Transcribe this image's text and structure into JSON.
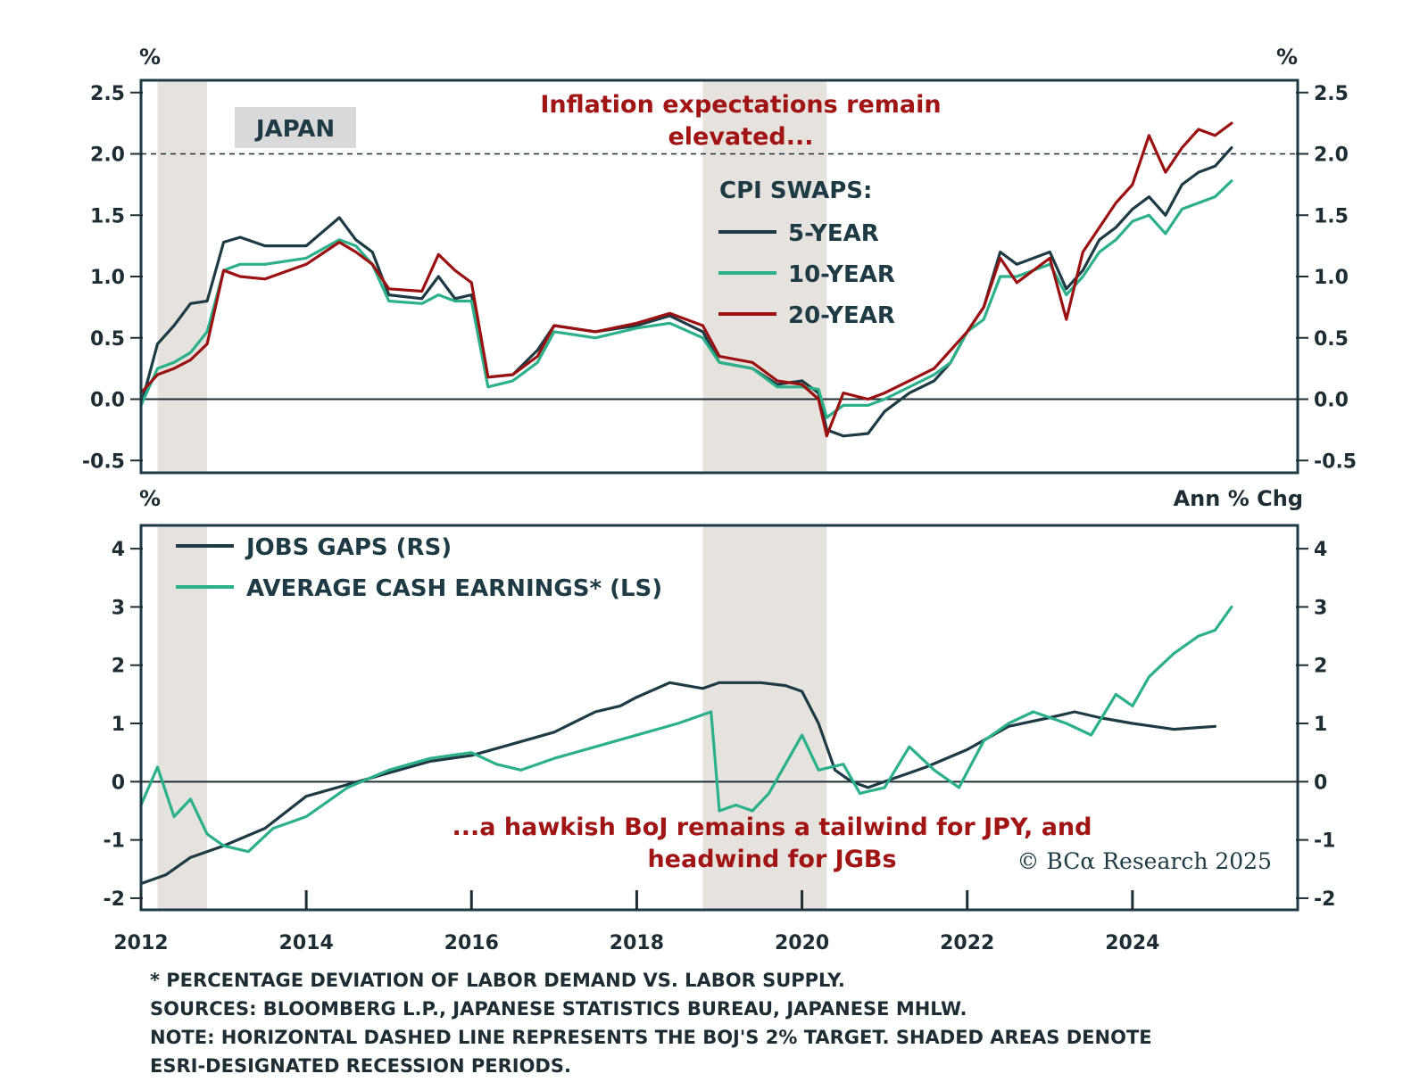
{
  "colors": {
    "five_year": "#1e3a44",
    "ten_year": "#2bb08a",
    "twenty_year": "#9b1111",
    "jobs_gap": "#1e3a44",
    "cash_earnings": "#2bb08a",
    "recession": "#e6e3df",
    "axis": "#1e2d33",
    "annotation": "#a11414"
  },
  "footnotes": [
    "* PERCENTAGE DEVIATION OF LABOR DEMAND VS. LABOR SUPPLY.",
    "SOURCES: BLOOMBERG L.P., JAPANESE STATISTICS BUREAU, JAPANESE MHLW.",
    "NOTE: HORIZONTAL DASHED LINE REPRESENTS THE BOJ'S 2% TARGET. SHADED AREAS DENOTE",
    "ESRI-DESIGNATED RECESSION PERIODS."
  ],
  "copyright": "© BCα Research 2025",
  "chart_data": [
    {
      "type": "line",
      "label_box": "JAPAN",
      "annotation": [
        "Inflation expectations remain",
        "elevated..."
      ],
      "legend_title": "CPI SWAPS:",
      "ylabel_left": "%",
      "ylabel_right": "%",
      "ylim": [
        -0.6,
        2.6
      ],
      "yticks": [
        "2.5",
        "2.0",
        "1.5",
        "1.0",
        "0.5",
        "0.0",
        "-0.5"
      ],
      "ytick_values": [
        2.5,
        2.0,
        1.5,
        1.0,
        0.5,
        0.0,
        -0.5
      ],
      "xlim": [
        2012,
        2026
      ],
      "reference_line": 2.0,
      "recessions": [
        [
          2012.2,
          2012.8
        ],
        [
          2018.8,
          2020.3
        ]
      ],
      "series": [
        {
          "name": "5-YEAR",
          "x": [
            2012.0,
            2012.2,
            2012.4,
            2012.6,
            2012.8,
            2013.0,
            2013.2,
            2013.5,
            2014.0,
            2014.4,
            2014.6,
            2014.8,
            2015.0,
            2015.4,
            2015.6,
            2015.8,
            2016.0,
            2016.2,
            2016.5,
            2016.8,
            2017.0,
            2017.5,
            2018.0,
            2018.4,
            2018.8,
            2019.0,
            2019.4,
            2019.7,
            2020.0,
            2020.2,
            2020.3,
            2020.5,
            2020.8,
            2021.0,
            2021.3,
            2021.6,
            2021.8,
            2022.0,
            2022.2,
            2022.4,
            2022.6,
            2022.8,
            2023.0,
            2023.2,
            2023.4,
            2023.6,
            2023.8,
            2024.0,
            2024.2,
            2024.4,
            2024.6,
            2024.8,
            2025.0,
            2025.2
          ],
          "y": [
            -0.05,
            0.45,
            0.6,
            0.78,
            0.8,
            1.28,
            1.32,
            1.25,
            1.25,
            1.48,
            1.3,
            1.2,
            0.85,
            0.82,
            1.0,
            0.82,
            0.85,
            0.18,
            0.2,
            0.4,
            0.6,
            0.55,
            0.6,
            0.68,
            0.55,
            0.3,
            0.25,
            0.12,
            0.15,
            0.05,
            -0.25,
            -0.3,
            -0.28,
            -0.1,
            0.05,
            0.15,
            0.3,
            0.55,
            0.75,
            1.2,
            1.1,
            1.15,
            1.2,
            0.9,
            1.05,
            1.3,
            1.4,
            1.55,
            1.65,
            1.5,
            1.75,
            1.85,
            1.9,
            2.05
          ]
        },
        {
          "name": "10-YEAR",
          "x": [
            2012.0,
            2012.2,
            2012.4,
            2012.6,
            2012.8,
            2013.0,
            2013.2,
            2013.5,
            2014.0,
            2014.4,
            2014.6,
            2014.8,
            2015.0,
            2015.4,
            2015.6,
            2015.8,
            2016.0,
            2016.2,
            2016.5,
            2016.8,
            2017.0,
            2017.5,
            2018.0,
            2018.4,
            2018.8,
            2019.0,
            2019.4,
            2019.7,
            2020.0,
            2020.2,
            2020.3,
            2020.5,
            2020.8,
            2021.0,
            2021.3,
            2021.6,
            2021.8,
            2022.0,
            2022.2,
            2022.4,
            2022.6,
            2022.8,
            2023.0,
            2023.2,
            2023.4,
            2023.6,
            2023.8,
            2024.0,
            2024.2,
            2024.4,
            2024.6,
            2024.8,
            2025.0,
            2025.2
          ],
          "y": [
            -0.05,
            0.25,
            0.3,
            0.38,
            0.55,
            1.05,
            1.1,
            1.1,
            1.15,
            1.3,
            1.25,
            1.1,
            0.8,
            0.78,
            0.85,
            0.8,
            0.8,
            0.1,
            0.15,
            0.3,
            0.55,
            0.5,
            0.58,
            0.62,
            0.5,
            0.3,
            0.25,
            0.1,
            0.1,
            0.08,
            -0.15,
            -0.05,
            -0.05,
            0.0,
            0.1,
            0.2,
            0.3,
            0.55,
            0.65,
            1.0,
            1.0,
            1.05,
            1.1,
            0.85,
            1.0,
            1.2,
            1.3,
            1.45,
            1.5,
            1.35,
            1.55,
            1.6,
            1.65,
            1.78
          ]
        },
        {
          "name": "20-YEAR",
          "x": [
            2012.0,
            2012.2,
            2012.4,
            2012.6,
            2012.8,
            2013.0,
            2013.2,
            2013.5,
            2014.0,
            2014.4,
            2014.6,
            2014.8,
            2015.0,
            2015.4,
            2015.6,
            2015.8,
            2016.0,
            2016.2,
            2016.5,
            2016.8,
            2017.0,
            2017.5,
            2018.0,
            2018.4,
            2018.8,
            2019.0,
            2019.4,
            2019.7,
            2020.0,
            2020.2,
            2020.3,
            2020.5,
            2020.8,
            2021.0,
            2021.3,
            2021.6,
            2021.8,
            2022.0,
            2022.2,
            2022.4,
            2022.6,
            2022.8,
            2023.0,
            2023.2,
            2023.4,
            2023.6,
            2023.8,
            2024.0,
            2024.2,
            2024.4,
            2024.6,
            2024.8,
            2025.0,
            2025.2
          ],
          "y": [
            0.05,
            0.2,
            0.25,
            0.32,
            0.45,
            1.05,
            1.0,
            0.98,
            1.1,
            1.28,
            1.2,
            1.1,
            0.9,
            0.88,
            1.18,
            1.05,
            0.95,
            0.18,
            0.2,
            0.35,
            0.6,
            0.55,
            0.62,
            0.7,
            0.6,
            0.35,
            0.3,
            0.15,
            0.12,
            0.0,
            -0.3,
            0.05,
            0.0,
            0.05,
            0.15,
            0.25,
            0.4,
            0.55,
            0.75,
            1.15,
            0.95,
            1.05,
            1.15,
            0.65,
            1.2,
            1.4,
            1.6,
            1.75,
            2.15,
            1.85,
            2.05,
            2.2,
            2.15,
            2.25
          ]
        }
      ]
    },
    {
      "type": "line",
      "ylabel_left": "%",
      "ylabel_right": "Ann % Chg",
      "ylim": [
        -2.2,
        4.4
      ],
      "yticks": [
        "4",
        "3",
        "2",
        "1",
        "0",
        "-1",
        "-2"
      ],
      "ytick_values": [
        4,
        3,
        2,
        1,
        0,
        -1,
        -2
      ],
      "xlim": [
        2012,
        2026
      ],
      "xticks": [
        "2012",
        "2014",
        "2016",
        "2018",
        "2020",
        "2022",
        "2024"
      ],
      "xtick_values": [
        2012,
        2014,
        2016,
        2018,
        2020,
        2022,
        2024
      ],
      "recessions": [
        [
          2012.2,
          2012.8
        ],
        [
          2018.8,
          2020.3
        ]
      ],
      "annotation": [
        "...a hawkish BoJ remains a tailwind for JPY, and",
        "headwind for JGBs"
      ],
      "series": [
        {
          "name": "JOBS GAPS (RS)",
          "x": [
            2012.0,
            2012.3,
            2012.6,
            2013.0,
            2013.5,
            2014.0,
            2014.5,
            2015.0,
            2015.5,
            2016.0,
            2016.5,
            2017.0,
            2017.5,
            2017.8,
            2018.0,
            2018.4,
            2018.8,
            2019.0,
            2019.5,
            2019.8,
            2020.0,
            2020.2,
            2020.4,
            2020.6,
            2020.8,
            2021.0,
            2021.5,
            2022.0,
            2022.5,
            2023.0,
            2023.3,
            2023.6,
            2024.0,
            2024.5,
            2025.0
          ],
          "y": [
            -1.75,
            -1.6,
            -1.3,
            -1.1,
            -0.8,
            -0.25,
            -0.05,
            0.15,
            0.35,
            0.45,
            0.65,
            0.85,
            1.2,
            1.3,
            1.45,
            1.7,
            1.6,
            1.7,
            1.7,
            1.65,
            1.55,
            1.0,
            0.2,
            0.0,
            -0.1,
            0.0,
            0.25,
            0.55,
            0.95,
            1.1,
            1.2,
            1.1,
            1.0,
            0.9,
            0.95
          ]
        },
        {
          "name": "AVERAGE CASH EARNINGS* (LS)",
          "x": [
            2012.0,
            2012.2,
            2012.4,
            2012.6,
            2012.8,
            2013.0,
            2013.3,
            2013.6,
            2014.0,
            2014.5,
            2015.0,
            2015.5,
            2016.0,
            2016.3,
            2016.6,
            2017.0,
            2017.5,
            2018.0,
            2018.5,
            2018.9,
            2019.0,
            2019.2,
            2019.4,
            2019.6,
            2019.8,
            2020.0,
            2020.2,
            2020.5,
            2020.7,
            2021.0,
            2021.3,
            2021.6,
            2021.9,
            2022.2,
            2022.5,
            2022.8,
            2023.0,
            2023.2,
            2023.5,
            2023.8,
            2024.0,
            2024.2,
            2024.5,
            2024.8,
            2025.0,
            2025.2
          ],
          "y": [
            -0.4,
            0.25,
            -0.6,
            -0.3,
            -0.9,
            -1.1,
            -1.2,
            -0.8,
            -0.6,
            -0.1,
            0.2,
            0.4,
            0.5,
            0.3,
            0.2,
            0.4,
            0.6,
            0.8,
            1.0,
            1.2,
            -0.5,
            -0.4,
            -0.5,
            -0.2,
            0.3,
            0.8,
            0.2,
            0.3,
            -0.2,
            -0.1,
            0.6,
            0.2,
            -0.1,
            0.7,
            1.0,
            1.2,
            1.1,
            1.0,
            0.8,
            1.5,
            1.3,
            1.8,
            2.2,
            2.5,
            2.6,
            3.0
          ]
        }
      ]
    }
  ]
}
